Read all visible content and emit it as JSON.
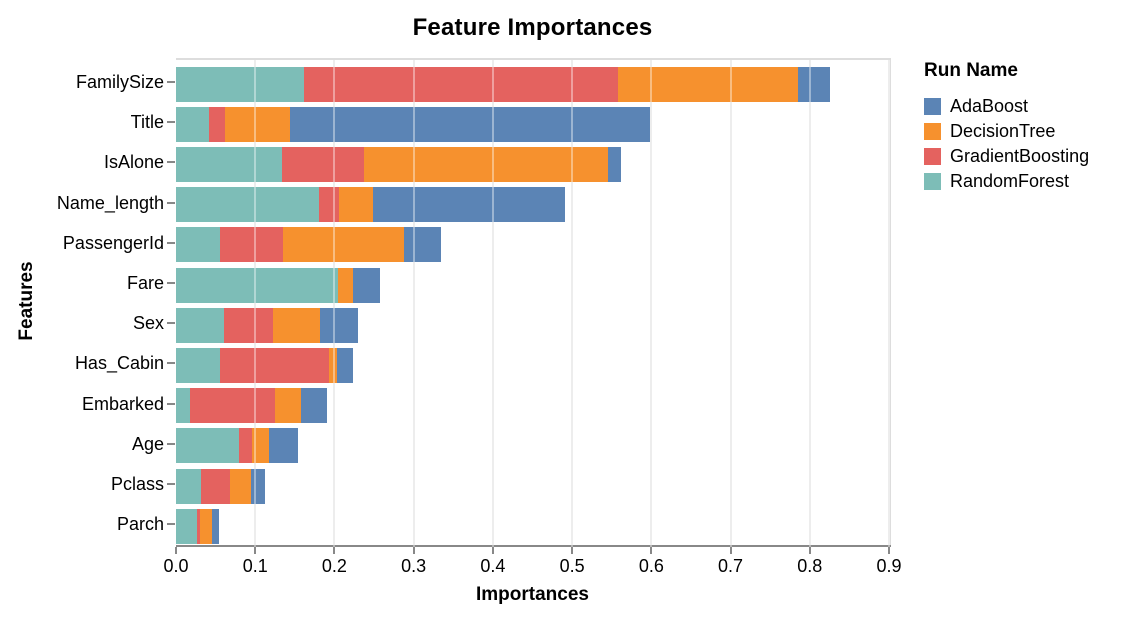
{
  "title": "Feature Importances",
  "chart_data": {
    "type": "bar",
    "stacked": true,
    "orientation": "horizontal",
    "title": "Feature Importances",
    "xlabel": "Importances",
    "ylabel": "Features",
    "xlim": [
      0.0,
      0.9
    ],
    "x_ticks": [
      "0.0",
      "0.1",
      "0.2",
      "0.3",
      "0.4",
      "0.5",
      "0.6",
      "0.7",
      "0.8",
      "0.9"
    ],
    "grid": true,
    "categories": [
      "FamilySize",
      "Title",
      "IsAlone",
      "Name_length",
      "PassengerId",
      "Fare",
      "Sex",
      "Has_Cabin",
      "Embarked",
      "Age",
      "Pclass",
      "Parch"
    ],
    "series": [
      {
        "name": "RandomForest",
        "color": "#7dbdb7",
        "values": [
          0.161,
          0.042,
          0.134,
          0.181,
          0.055,
          0.205,
          0.06,
          0.055,
          0.018,
          0.079,
          0.032,
          0.027
        ]
      },
      {
        "name": "GradientBoosting",
        "color": "#e4625f",
        "values": [
          0.397,
          0.02,
          0.103,
          0.025,
          0.08,
          0.0,
          0.062,
          0.138,
          0.107,
          0.017,
          0.036,
          0.003
        ]
      },
      {
        "name": "DecisionTree",
        "color": "#f6912e",
        "values": [
          0.227,
          0.082,
          0.308,
          0.043,
          0.153,
          0.018,
          0.06,
          0.01,
          0.033,
          0.022,
          0.027,
          0.016
        ]
      },
      {
        "name": "AdaBoost",
        "color": "#5b84b5",
        "values": [
          0.04,
          0.454,
          0.017,
          0.242,
          0.047,
          0.034,
          0.048,
          0.021,
          0.032,
          0.036,
          0.017,
          0.008
        ]
      }
    ],
    "legend": {
      "title": "Run Name",
      "position": "right",
      "entries": [
        {
          "label": "AdaBoost",
          "color": "#5b84b5"
        },
        {
          "label": "DecisionTree",
          "color": "#f6912e"
        },
        {
          "label": "GradientBoosting",
          "color": "#e4625f"
        },
        {
          "label": "RandomForest",
          "color": "#7dbdb7"
        }
      ]
    },
    "totals": [
      0.825,
      0.598,
      0.562,
      0.491,
      0.335,
      0.257,
      0.23,
      0.224,
      0.19,
      0.154,
      0.112,
      0.054
    ]
  }
}
